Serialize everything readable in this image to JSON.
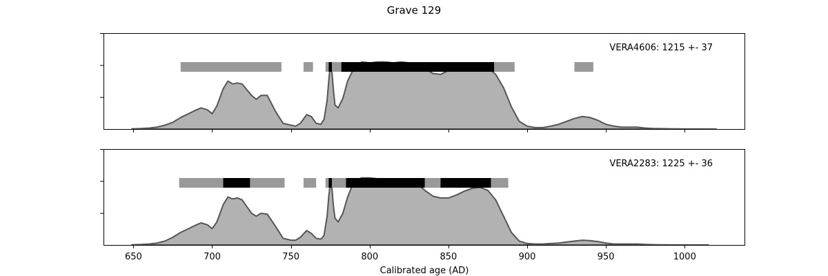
{
  "chart_data": {
    "type": "area",
    "title": "Grave 129",
    "xlabel": "Calibrated age (AD)",
    "xlim": [
      631,
      1038
    ],
    "xticks": [
      650,
      700,
      750,
      800,
      850,
      900,
      950,
      1000
    ],
    "grid": false,
    "colors": {
      "curve_fill": "#b2b2b2",
      "curve_line": "#555555",
      "range_68": "#000000",
      "range_95": "#999999"
    },
    "panels": [
      {
        "label": "VERA4606: 1215 +- 37",
        "range_95": [
          [
            680,
            744
          ],
          [
            758,
            764
          ],
          [
            772,
            782
          ],
          [
            782,
            892
          ],
          [
            930,
            942
          ]
        ],
        "range_68": [
          [
            774,
            776
          ],
          [
            782,
            879
          ]
        ],
        "density": {
          "x": [
            649,
            655,
            660,
            665,
            670,
            675,
            680,
            685,
            690,
            693,
            697,
            700,
            703,
            707,
            710,
            713,
            716,
            719,
            722,
            725,
            728,
            731,
            735,
            740,
            745,
            750,
            753,
            756,
            760,
            763,
            766,
            769,
            771,
            773,
            774,
            775,
            776,
            777,
            778,
            780,
            783,
            786,
            789,
            792,
            795,
            800,
            805,
            810,
            815,
            820,
            825,
            830,
            835,
            840,
            845,
            850,
            855,
            860,
            865,
            870,
            875,
            880,
            885,
            890,
            895,
            900,
            905,
            910,
            915,
            920,
            925,
            930,
            935,
            940,
            945,
            950,
            955,
            960,
            965,
            970,
            975,
            980,
            990,
            1000,
            1010,
            1020
          ],
          "y": [
            0.002,
            0.005,
            0.01,
            0.02,
            0.04,
            0.07,
            0.12,
            0.16,
            0.2,
            0.22,
            0.2,
            0.16,
            0.24,
            0.42,
            0.5,
            0.47,
            0.48,
            0.47,
            0.41,
            0.35,
            0.31,
            0.35,
            0.35,
            0.19,
            0.06,
            0.04,
            0.03,
            0.06,
            0.15,
            0.13,
            0.06,
            0.05,
            0.1,
            0.3,
            0.5,
            0.67,
            0.6,
            0.4,
            0.25,
            0.22,
            0.32,
            0.5,
            0.6,
            0.65,
            0.7,
            0.69,
            0.7,
            0.7,
            0.69,
            0.7,
            0.69,
            0.67,
            0.63,
            0.58,
            0.57,
            0.61,
            0.64,
            0.66,
            0.67,
            0.67,
            0.64,
            0.57,
            0.43,
            0.23,
            0.08,
            0.03,
            0.015,
            0.015,
            0.03,
            0.05,
            0.08,
            0.11,
            0.13,
            0.12,
            0.09,
            0.05,
            0.03,
            0.02,
            0.02,
            0.02,
            0.01,
            0.005,
            0.003,
            0.001,
            0.0005,
            0.0
          ]
        }
      },
      {
        "label": "VERA2283: 1225 +- 36",
        "range_95": [
          [
            679,
            746
          ],
          [
            758,
            766
          ],
          [
            772,
            888
          ]
        ],
        "range_68": [
          [
            707,
            724
          ],
          [
            774,
            776
          ],
          [
            785,
            835
          ],
          [
            845,
            877
          ]
        ],
        "density": {
          "x": [
            649,
            655,
            660,
            665,
            670,
            675,
            680,
            685,
            690,
            693,
            697,
            700,
            703,
            707,
            710,
            713,
            716,
            719,
            722,
            725,
            728,
            731,
            735,
            740,
            745,
            750,
            753,
            756,
            760,
            763,
            766,
            769,
            771,
            773,
            774,
            775,
            776,
            777,
            778,
            780,
            783,
            786,
            789,
            792,
            795,
            800,
            805,
            810,
            815,
            820,
            825,
            830,
            835,
            840,
            845,
            850,
            855,
            860,
            865,
            870,
            875,
            880,
            885,
            890,
            895,
            900,
            905,
            910,
            915,
            920,
            925,
            930,
            935,
            940,
            945,
            950,
            955,
            960,
            965,
            970,
            975,
            980,
            990,
            1000,
            1010,
            1015
          ],
          "y": [
            0.002,
            0.005,
            0.01,
            0.02,
            0.04,
            0.08,
            0.13,
            0.17,
            0.21,
            0.23,
            0.21,
            0.17,
            0.24,
            0.42,
            0.5,
            0.48,
            0.49,
            0.47,
            0.4,
            0.33,
            0.3,
            0.33,
            0.32,
            0.2,
            0.07,
            0.05,
            0.05,
            0.08,
            0.15,
            0.12,
            0.07,
            0.06,
            0.1,
            0.3,
            0.5,
            0.65,
            0.6,
            0.4,
            0.28,
            0.24,
            0.33,
            0.5,
            0.62,
            0.68,
            0.7,
            0.7,
            0.69,
            0.69,
            0.68,
            0.69,
            0.68,
            0.64,
            0.57,
            0.51,
            0.49,
            0.49,
            0.52,
            0.56,
            0.59,
            0.6,
            0.57,
            0.47,
            0.3,
            0.13,
            0.04,
            0.015,
            0.01,
            0.01,
            0.015,
            0.02,
            0.03,
            0.04,
            0.05,
            0.045,
            0.035,
            0.02,
            0.01,
            0.01,
            0.01,
            0.01,
            0.005,
            0.003,
            0.001,
            0.0005,
            0.0,
            0.0
          ]
        }
      }
    ]
  }
}
